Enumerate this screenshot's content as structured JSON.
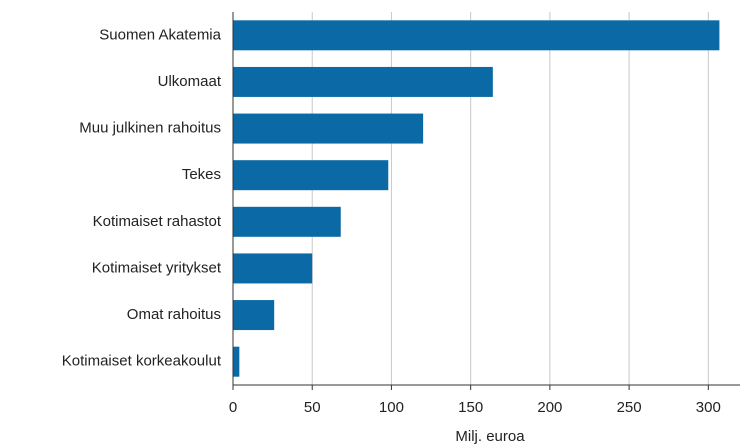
{
  "chart_data": {
    "type": "bar",
    "orientation": "horizontal",
    "categories": [
      "Suomen Akatemia",
      "Ulkomaat",
      "Muu julkinen rahoitus",
      "Tekes",
      "Kotimaiset rahastot",
      "Kotimaiset yritykset",
      "Omat rahoitus",
      "Kotimaiset korkeakoulut"
    ],
    "values": [
      307,
      164,
      120,
      98,
      68,
      50,
      26,
      4
    ],
    "color": "#0b6aa6",
    "x_label": "Milj. euroa",
    "xlim": [
      0,
      320
    ],
    "xticks": [
      0,
      50,
      100,
      150,
      200,
      250,
      300
    ],
    "grid": true
  }
}
